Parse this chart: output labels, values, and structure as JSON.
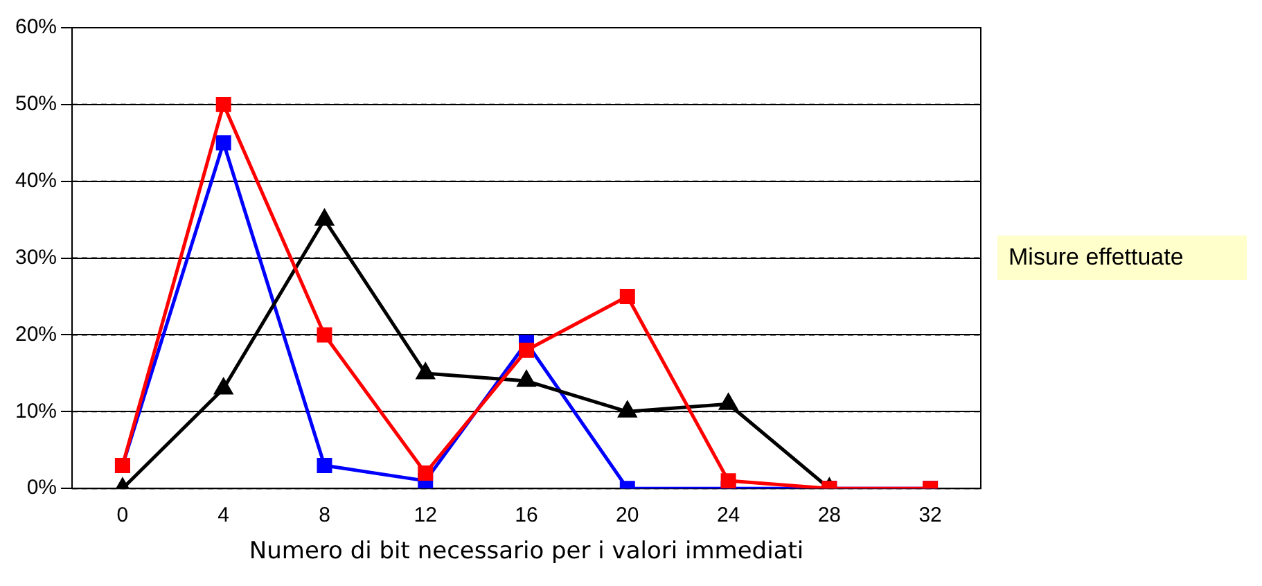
{
  "chart_data": {
    "type": "line",
    "xlabel": "Numero di bit necessario per i valori immediati",
    "categories": [
      "0",
      "4",
      "8",
      "12",
      "16",
      "20",
      "24",
      "28",
      "32"
    ],
    "series": [
      {
        "color": "#ff0000",
        "marker": "square",
        "values": [
          3,
          50,
          20,
          2,
          18,
          25,
          1,
          0,
          0
        ]
      },
      {
        "color": "#000000",
        "marker": "triangle",
        "values": [
          0,
          13,
          35,
          15,
          14,
          10,
          11,
          0,
          null
        ]
      },
      {
        "color": "#0000ff",
        "marker": "square",
        "values": [
          3,
          45,
          3,
          1,
          19,
          0,
          0,
          0,
          0
        ]
      }
    ],
    "ylim": [
      0,
      60
    ],
    "yticks": [
      {
        "value": 0,
        "label": "0%"
      },
      {
        "value": 10,
        "label": "10%"
      },
      {
        "value": 20,
        "label": "20%"
      },
      {
        "value": 30,
        "label": "30%"
      },
      {
        "value": 40,
        "label": "40%"
      },
      {
        "value": 50,
        "label": "50%"
      },
      {
        "value": 60,
        "label": "60%"
      }
    ],
    "grid": "y",
    "legend": false,
    "line_style": "solid",
    "annotations": [
      "Misure effettuate"
    ]
  }
}
